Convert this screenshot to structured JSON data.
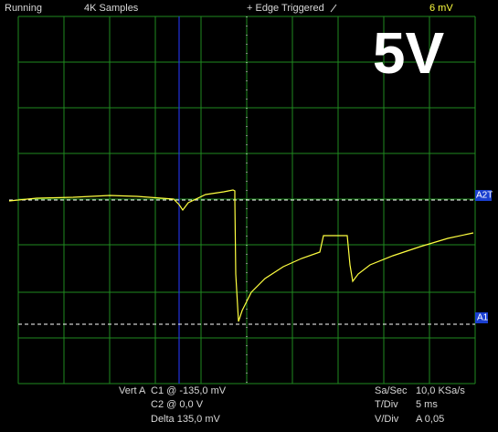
{
  "header": {
    "status": "Running",
    "samples": "4K Samples",
    "trigger": "+ Edge Triggered",
    "trigger_level": "6 mV"
  },
  "overlay_label": "5V",
  "markers": {
    "trigger_marker": "A2T",
    "cursor_marker": "A1"
  },
  "footer": {
    "left": {
      "channel": "Vert A",
      "c1": "C1 @ -135,0 mV",
      "c2": "C2 @ 0,0 V",
      "delta": "Delta 135,0 mV"
    },
    "right": {
      "rate_label": "Sa/Sec",
      "rate_value": "10,0 KSa/s",
      "time_label": "T/Div",
      "time_value": "5 ms",
      "volt_label": "V/Div",
      "volt_value": "A 0,05"
    }
  }
}
